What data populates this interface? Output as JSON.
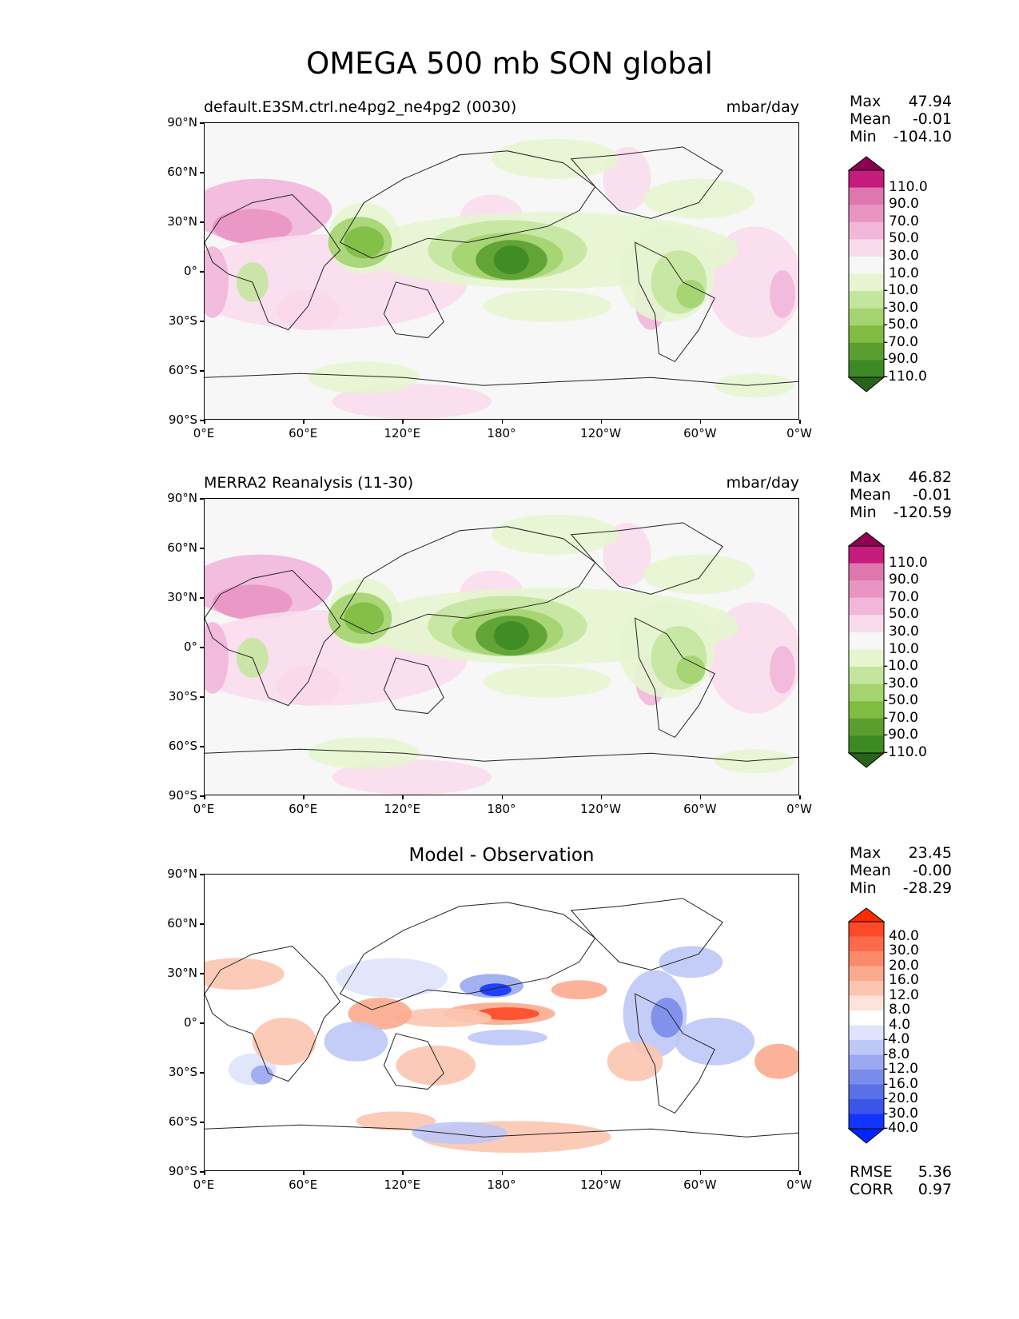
{
  "figure": {
    "title": "OMEGA 500 mb SON global"
  },
  "axes": {
    "lat_labels": [
      "90°N",
      "60°N",
      "30°N",
      "0°",
      "30°S",
      "60°S",
      "90°S"
    ],
    "lon_labels": [
      "0°E",
      "60°E",
      "120°E",
      "180°",
      "120°W",
      "60°W",
      "0°W"
    ]
  },
  "panels": [
    {
      "title_left": "default.E3SM.ctrl.ne4pg2_ne4pg2 (0030)",
      "title_right": "mbar/day",
      "title_center": "",
      "stats": [
        {
          "label": "Max",
          "value": "47.94"
        },
        {
          "label": "Mean",
          "value": "-0.01"
        },
        {
          "label": "Min",
          "value": "-104.10"
        }
      ],
      "colorbar_labels": [
        "110.0",
        "90.0",
        "70.0",
        "50.0",
        "30.0",
        "10.0",
        "-10.0",
        "-30.0",
        "-50.0",
        "-70.0",
        "-90.0",
        "-110.0"
      ],
      "colorbar_colors": [
        "#8e0152",
        "#c51b7d",
        "#de77ae",
        "#e995c4",
        "#f1b6da",
        "#f9dcec",
        "#f7f7f7",
        "#e6f5d0",
        "#c4e59e",
        "#a4d36f",
        "#7fbc41",
        "#5a9e30",
        "#3d8a24",
        "#276419"
      ]
    },
    {
      "title_left": "MERRA2 Reanalysis (11-30)",
      "title_right": "mbar/day",
      "title_center": "",
      "stats": [
        {
          "label": "Max",
          "value": "46.82"
        },
        {
          "label": "Mean",
          "value": "-0.01"
        },
        {
          "label": "Min",
          "value": "-120.59"
        }
      ],
      "colorbar_labels": [
        "110.0",
        "90.0",
        "70.0",
        "50.0",
        "30.0",
        "10.0",
        "-10.0",
        "-30.0",
        "-50.0",
        "-70.0",
        "-90.0",
        "-110.0"
      ],
      "colorbar_colors": [
        "#8e0152",
        "#c51b7d",
        "#de77ae",
        "#e995c4",
        "#f1b6da",
        "#f9dcec",
        "#f7f7f7",
        "#e6f5d0",
        "#c4e59e",
        "#a4d36f",
        "#7fbc41",
        "#5a9e30",
        "#3d8a24",
        "#276419"
      ]
    },
    {
      "title_left": "",
      "title_right": "",
      "title_center": "Model - Observation",
      "stats": [
        {
          "label": "Max",
          "value": "23.45"
        },
        {
          "label": "Mean",
          "value": "-0.00"
        },
        {
          "label": "Min",
          "value": "-28.29"
        }
      ],
      "colorbar_labels": [
        "40.0",
        "30.0",
        "20.0",
        "16.0",
        "12.0",
        "8.0",
        "4.0",
        "-4.0",
        "-8.0",
        "-12.0",
        "-16.0",
        "-20.0",
        "-30.0",
        "-40.0"
      ],
      "colorbar_colors": [
        "#ff2a00",
        "#fd4a26",
        "#fb6a4a",
        "#fc8a6a",
        "#fcaa8e",
        "#fcc5b0",
        "#fde3da",
        "#ffffff",
        "#dfe3fb",
        "#bec8f6",
        "#9aa9f0",
        "#7a8cea",
        "#5a70e6",
        "#3a55e8",
        "#1234ff",
        "#0027ff"
      ],
      "scores": [
        {
          "label": "RMSE",
          "value": "5.36"
        },
        {
          "label": "CORR",
          "value": "0.97"
        }
      ]
    }
  ]
}
